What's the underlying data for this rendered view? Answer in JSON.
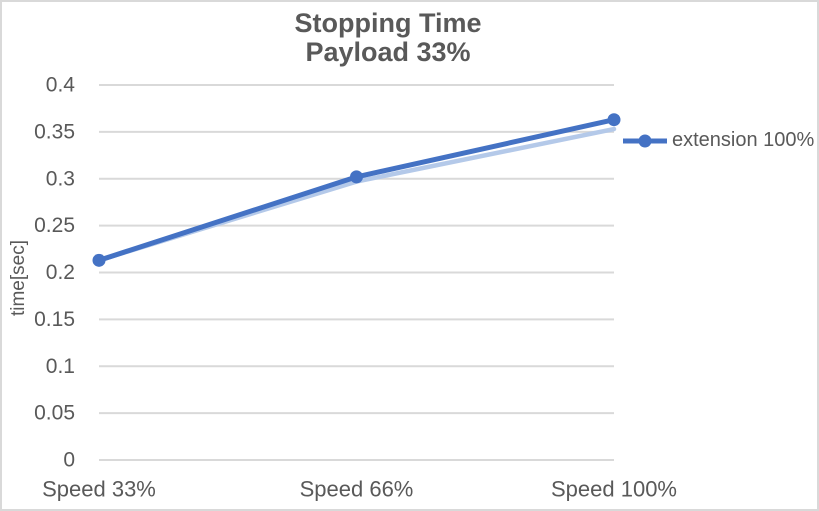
{
  "chart_data": {
    "type": "line",
    "title": "Stopping Time",
    "subtitle": "Payload 33%",
    "ylabel": "time[sec]",
    "xlabel": "",
    "categories": [
      "Speed 33%",
      "Speed 66%",
      "Speed 100%"
    ],
    "series": [
      {
        "name": "extension 100%",
        "values": [
          0.213,
          0.302,
          0.363
        ],
        "color": "#4472C4",
        "marker": "circle"
      }
    ],
    "shadow_series": {
      "values": [
        0.213,
        0.297,
        0.353
      ],
      "color": "#B4C9E9",
      "note": "faint duplicate line visible behind main series"
    },
    "ylim": [
      0,
      0.4
    ],
    "ytick_step": 0.05,
    "ytick_labels": [
      "0",
      "0.05",
      "0.1",
      "0.15",
      "0.2",
      "0.25",
      "0.3",
      "0.35",
      "0.4"
    ],
    "grid": true,
    "legend": [
      "extension 100%"
    ],
    "legend_position": "right-middle",
    "text_color": "#595959",
    "grid_color": "#D9D9D9",
    "background_color": "#FFFFFF"
  }
}
